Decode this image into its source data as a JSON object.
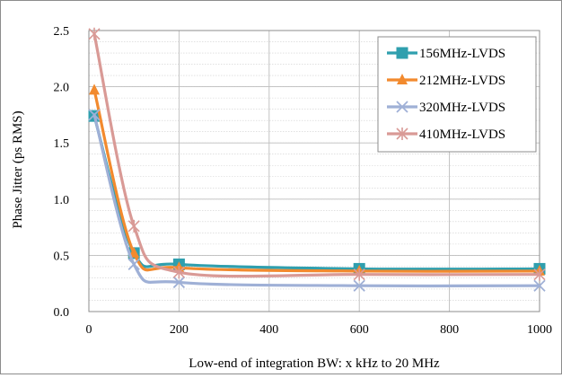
{
  "chart_data": {
    "type": "line",
    "title": "",
    "xlabel": "Low-end of integration BW: x kHz to 20 MHz",
    "ylabel": "Phase Jitter (ps RMS)",
    "xlim": [
      0,
      1000
    ],
    "ylim": [
      0,
      2.5
    ],
    "xticks": [
      0,
      200,
      400,
      600,
      800,
      1000
    ],
    "xtick_labels": [
      "0",
      "200",
      "400",
      "600",
      "800",
      "1000"
    ],
    "yticks": [
      0,
      0.5,
      1.0,
      1.5,
      2.0,
      2.5
    ],
    "ytick_labels": [
      "0.0",
      "0.5",
      "1.0",
      "1.5",
      "2.0",
      "2.5"
    ],
    "grid": true,
    "minor_grid": true,
    "legend_position": "top-right",
    "x": [
      12,
      100,
      200,
      600,
      1000
    ],
    "series": [
      {
        "name": "156MHz-LVDS",
        "color": "#2f9fae",
        "marker": "square",
        "values": [
          1.74,
          0.52,
          0.42,
          0.38,
          0.38
        ],
        "curve_tail": 0.39
      },
      {
        "name": "212MHz-LVDS",
        "color": "#f28a2e",
        "marker": "triangle",
        "values": [
          1.97,
          0.52,
          0.39,
          0.36,
          0.36
        ],
        "curve_tail": 0.36
      },
      {
        "name": "320MHz-LVDS",
        "color": "#9fb0d6",
        "marker": "x",
        "values": [
          1.75,
          0.42,
          0.26,
          0.23,
          0.23
        ],
        "curve_tail": 0.23
      },
      {
        "name": "410MHz-LVDS",
        "color": "#d99a96",
        "marker": "star",
        "values": [
          2.47,
          0.76,
          0.35,
          0.33,
          0.33
        ],
        "curve_tail": 0.34
      }
    ]
  }
}
